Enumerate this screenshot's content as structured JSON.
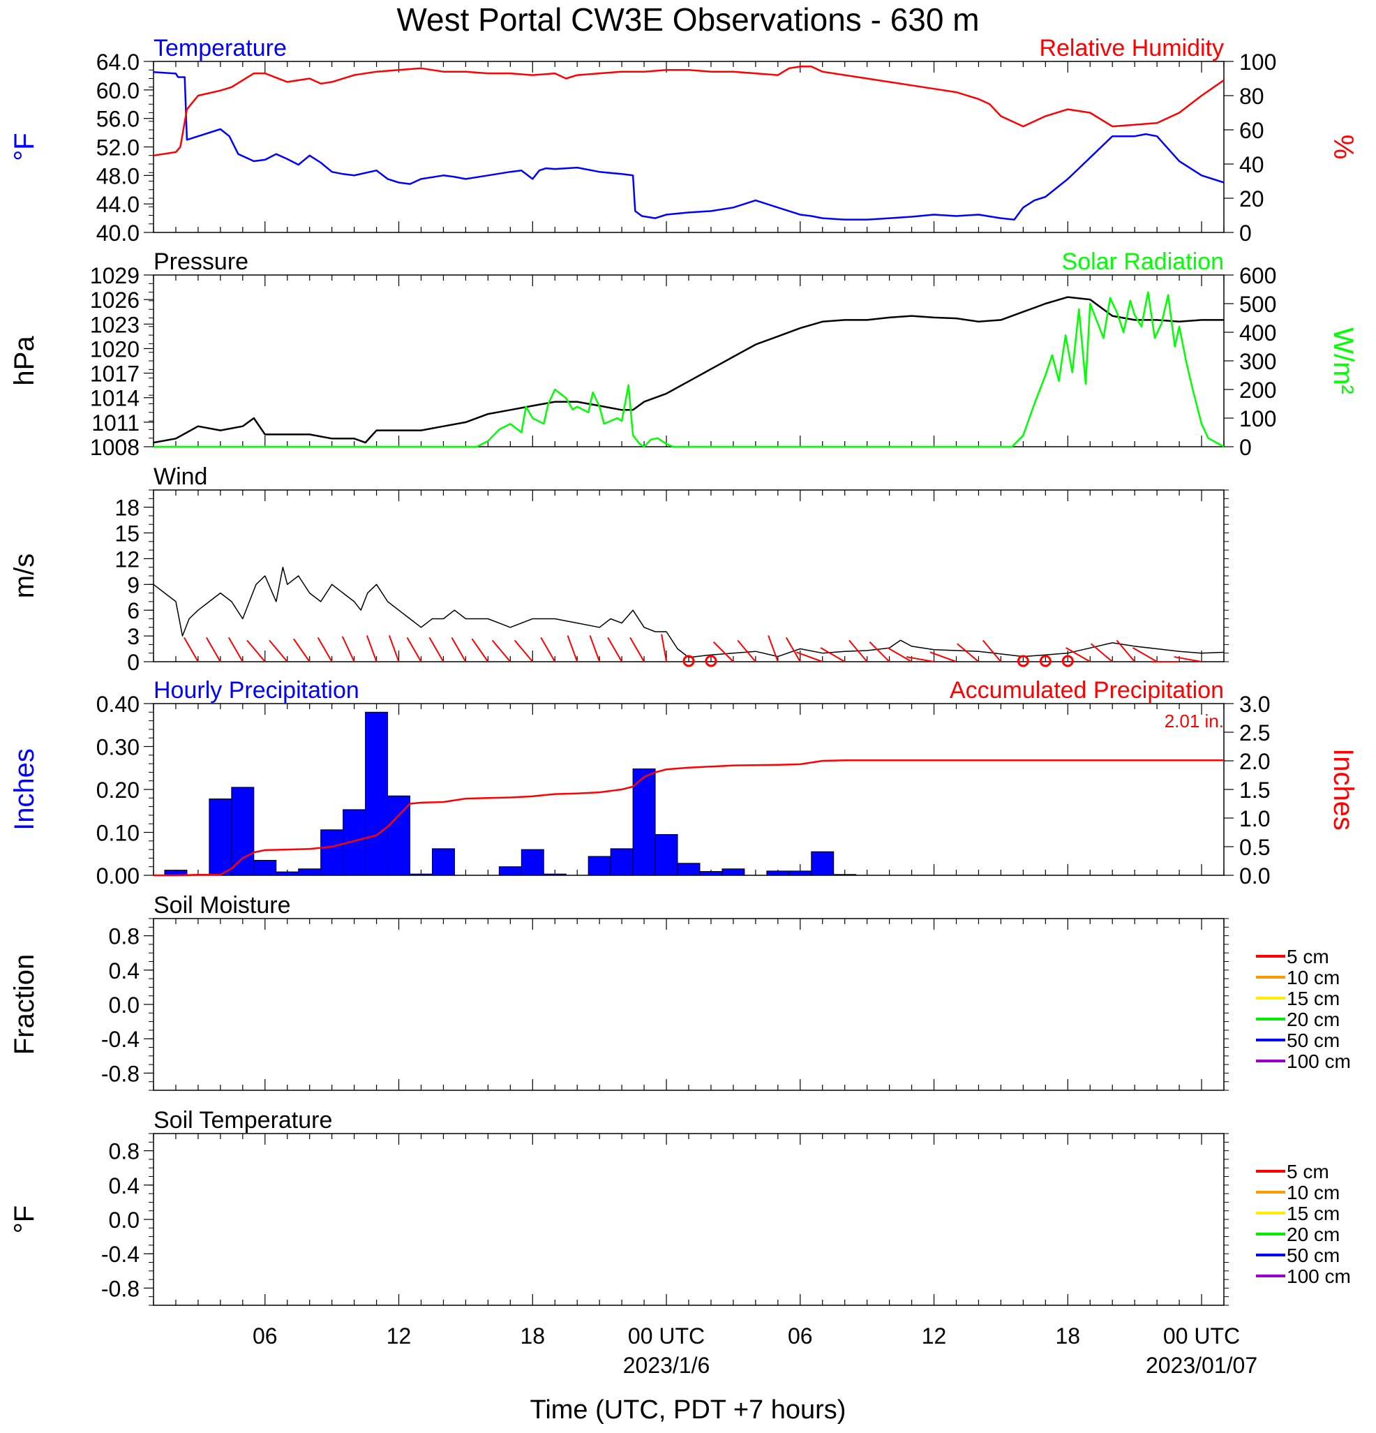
{
  "title": "West Portal CW3E Observations - 630 m",
  "colors": {
    "temperature": "#0000ff",
    "humidity": "#ff0000",
    "pressure": "#000000",
    "solar": "#00ff00",
    "wind": "#000000",
    "barbs": "#ff0000",
    "precip_bars": "#0000ff",
    "precip_accum": "#ff0000"
  },
  "xaxis": {
    "start_hours": 0,
    "end_hours": 48,
    "tick_hours": [
      5,
      11,
      17,
      23,
      29,
      35,
      41,
      47
    ],
    "tick_labels": [
      "06",
      "12",
      "18",
      "00 UTC",
      "06",
      "12",
      "18",
      "00 UTC"
    ],
    "date_labels": [
      {
        "hour": 23,
        "text": "2023/1/6"
      },
      {
        "hour": 47,
        "text": "2023/01/07"
      }
    ],
    "title": "Time (UTC, PDT +7 hours)"
  },
  "chart_data": [
    {
      "type": "line",
      "id": "temp_rh",
      "left_title": "Temperature",
      "right_title": "Relative Humidity",
      "ylabel_left": "°F",
      "ylabel_right": "%",
      "ylim_left": [
        40,
        64
      ],
      "ylim_right": [
        0,
        100
      ],
      "yticks_left": [
        "40.0",
        "44.0",
        "48.0",
        "52.0",
        "56.0",
        "60.0",
        "64.0"
      ],
      "yticks_right": [
        "0",
        "20",
        "40",
        "60",
        "80",
        "100"
      ],
      "series": [
        {
          "name": "Temperature",
          "axis": "left",
          "x": [
            0,
            1.0,
            1.1,
            1.4,
            1.5,
            2,
            3,
            3.4,
            3.8,
            4.5,
            5,
            5.5,
            6,
            6.5,
            7,
            7.5,
            8,
            8.5,
            9,
            10,
            10.5,
            11,
            11.5,
            12,
            13,
            13.5,
            14,
            15,
            16,
            16.5,
            17,
            17.3,
            17.6,
            18,
            19,
            20,
            21,
            21.5,
            21.6,
            21.9,
            22.5,
            23,
            24,
            25,
            26,
            27,
            28,
            29,
            29.5,
            30,
            31,
            32,
            33,
            34,
            35,
            36,
            37,
            38,
            38.6,
            39,
            39.5,
            40,
            41,
            41.5,
            42,
            43,
            44,
            44.5,
            45,
            46,
            47,
            48
          ],
          "values": [
            62.5,
            62.3,
            61.8,
            61.8,
            53.0,
            53.5,
            54.5,
            53.5,
            51.0,
            50.0,
            50.2,
            51.0,
            50.3,
            49.5,
            50.8,
            49.8,
            48.5,
            48.2,
            48.0,
            48.7,
            47.5,
            47.0,
            46.8,
            47.5,
            48.0,
            47.8,
            47.5,
            48.0,
            48.5,
            48.7,
            47.5,
            48.7,
            49.0,
            48.9,
            49.1,
            48.5,
            48.2,
            48.0,
            43.0,
            42.3,
            42.0,
            42.5,
            42.8,
            43.0,
            43.5,
            44.5,
            43.5,
            42.5,
            42.3,
            42.0,
            41.8,
            41.8,
            42.0,
            42.2,
            42.5,
            42.3,
            42.5,
            42.0,
            41.8,
            43.5,
            44.5,
            45.0,
            47.5,
            49.0,
            50.5,
            53.5,
            53.5,
            53.8,
            53.5,
            50.0,
            48.0,
            47.0
          ]
        },
        {
          "name": "Relative Humidity",
          "axis": "right",
          "x": [
            0,
            1,
            1.2,
            1.5,
            2,
            3,
            3.5,
            4.5,
            5,
            6,
            7,
            7.5,
            8,
            9,
            10,
            11,
            12,
            13,
            14,
            15,
            16,
            17,
            18,
            18.5,
            19,
            20,
            21,
            22,
            23,
            24,
            25,
            26,
            27,
            28,
            28.5,
            29,
            29.5,
            30,
            31,
            32,
            33,
            34,
            35,
            36,
            37,
            37.5,
            38,
            39,
            40,
            41,
            42,
            43,
            44,
            45,
            46,
            47,
            48
          ],
          "values": [
            45,
            47,
            50,
            72,
            80,
            83,
            85,
            93,
            93,
            88,
            90,
            87,
            88,
            92,
            94,
            95,
            96,
            94,
            94,
            93,
            93,
            92,
            93,
            90,
            92,
            93,
            94,
            94,
            95,
            95,
            94,
            94,
            93,
            92,
            96,
            97,
            97,
            94,
            92,
            90,
            88,
            86,
            84,
            82,
            78,
            75,
            68,
            62,
            68,
            72,
            70,
            62,
            63,
            64,
            70,
            80,
            89
          ]
        }
      ]
    },
    {
      "type": "line",
      "id": "pressure_solar",
      "left_title": "Pressure",
      "right_title": "Solar Radiation",
      "ylabel_left": "hPa",
      "ylabel_right": "W/m²",
      "ylim_left": [
        1008,
        1029
      ],
      "ylim_right": [
        0,
        600
      ],
      "yticks_left": [
        "1008",
        "1011",
        "1014",
        "1017",
        "1020",
        "1023",
        "1026",
        "1029"
      ],
      "yticks_right": [
        "0",
        "100",
        "200",
        "300",
        "400",
        "500",
        "600"
      ],
      "series": [
        {
          "name": "Pressure",
          "axis": "left",
          "x": [
            0,
            1,
            2,
            3,
            4,
            4.5,
            5,
            6,
            7,
            8,
            9,
            9.5,
            10,
            11,
            12,
            13,
            14,
            15,
            16,
            17,
            18,
            19,
            20,
            21,
            21.5,
            22,
            23,
            24,
            25,
            26,
            27,
            28,
            29,
            30,
            31,
            32,
            33,
            34,
            35,
            36,
            37,
            38,
            38.5,
            39,
            39.5,
            40,
            41,
            42,
            43,
            44,
            45,
            46,
            47,
            48
          ],
          "values": [
            1008.5,
            1009,
            1010.5,
            1010,
            1010.5,
            1011.5,
            1009.5,
            1009.5,
            1009.5,
            1009,
            1009,
            1008.5,
            1010,
            1010,
            1010,
            1010.5,
            1011,
            1012,
            1012.5,
            1013,
            1013.5,
            1013.5,
            1013,
            1012.5,
            1012.5,
            1013.5,
            1014.5,
            1016,
            1017.5,
            1019,
            1020.5,
            1021.5,
            1022.5,
            1023.3,
            1023.5,
            1023.5,
            1023.8,
            1024,
            1023.8,
            1023.7,
            1023.3,
            1023.5,
            1024,
            1024.5,
            1025,
            1025.5,
            1026.3,
            1026,
            1024,
            1023.5,
            1023.5,
            1023.3,
            1023.5,
            1023.5
          ]
        },
        {
          "name": "Solar Radiation",
          "axis": "right",
          "x": [
            0,
            14.5,
            15,
            15.5,
            16,
            16.5,
            16.7,
            17,
            17.5,
            17.7,
            18,
            18.5,
            18.8,
            19,
            19.5,
            19.7,
            20,
            20.2,
            20.5,
            20.8,
            21,
            21.3,
            21.5,
            21.8,
            22,
            22.3,
            22.6,
            23,
            23.3,
            24,
            38.5,
            39,
            39.5,
            40,
            40.3,
            40.6,
            40.9,
            41.2,
            41.5,
            41.8,
            42,
            42.3,
            42.6,
            42.9,
            43.2,
            43.5,
            43.8,
            44,
            44.3,
            44.6,
            44.9,
            45.2,
            45.5,
            45.8,
            46,
            46.3,
            46.6,
            47,
            47.3,
            48
          ],
          "values": [
            0,
            0,
            20,
            60,
            80,
            50,
            140,
            100,
            80,
            150,
            200,
            170,
            130,
            140,
            120,
            190,
            140,
            80,
            90,
            100,
            90,
            215,
            40,
            10,
            0,
            25,
            30,
            10,
            0,
            0,
            0,
            40,
            150,
            250,
            320,
            230,
            390,
            260,
            480,
            220,
            500,
            440,
            380,
            520,
            470,
            400,
            510,
            460,
            420,
            540,
            380,
            430,
            530,
            350,
            420,
            300,
            200,
            80,
            30,
            0
          ]
        }
      ]
    },
    {
      "type": "line",
      "id": "wind",
      "left_title": "Wind",
      "ylabel_left": "m/s",
      "ylim_left": [
        0,
        20
      ],
      "yticks_left": [
        "0",
        "3",
        "6",
        "9",
        "12",
        "15",
        "18"
      ],
      "series": [
        {
          "name": "Wind Speed",
          "axis": "left",
          "x": [
            0,
            0.5,
            1,
            1.3,
            1.6,
            2,
            2.5,
            3,
            3.5,
            4,
            4.3,
            4.6,
            5,
            5.5,
            5.8,
            6,
            6.5,
            7,
            7.5,
            8,
            8.5,
            9,
            9.3,
            9.6,
            10,
            10.5,
            11,
            11.5,
            12,
            12.5,
            13,
            13.5,
            14,
            15,
            16,
            17,
            18,
            19,
            20,
            20.5,
            21,
            21.5,
            22,
            22.5,
            23,
            23.5,
            24,
            25,
            26,
            27,
            28,
            29,
            30,
            31,
            32,
            33,
            33.5,
            34,
            35,
            36,
            37,
            38,
            39,
            40,
            41,
            42,
            43,
            44,
            45,
            46,
            47,
            48
          ],
          "values": [
            9,
            8,
            7,
            3,
            5,
            6,
            7,
            8,
            7,
            5,
            7,
            9,
            10,
            7,
            11,
            9,
            10,
            8,
            7,
            9,
            8,
            7,
            6,
            8,
            9,
            7,
            6,
            5,
            4,
            5,
            5,
            6,
            5,
            5,
            4,
            5,
            5,
            4.5,
            4,
            5,
            4.5,
            6,
            4,
            3.5,
            3.5,
            1.5,
            0.5,
            0.8,
            1,
            1.2,
            0.6,
            1.5,
            1,
            1.2,
            1.3,
            1.6,
            2.5,
            1.8,
            1.4,
            1.3,
            1.2,
            0.9,
            0.6,
            0.8,
            1,
            1.6,
            2.2,
            1.8,
            1.5,
            1.2,
            1,
            1.1
          ]
        }
      ],
      "barbs": {
        "x": [
          2,
          3,
          4,
          5,
          6,
          7,
          8,
          9,
          10,
          11,
          12,
          13,
          14,
          15,
          16,
          17,
          18,
          19,
          20,
          21,
          22,
          23,
          26,
          27,
          28,
          29,
          30,
          31,
          32,
          33,
          34,
          35,
          36,
          37,
          38,
          41,
          42,
          43,
          44,
          45,
          46,
          47
        ],
        "dir": [
          330,
          330,
          330,
          320,
          320,
          325,
          330,
          335,
          340,
          340,
          330,
          330,
          330,
          325,
          320,
          320,
          330,
          340,
          340,
          330,
          330,
          350,
          315,
          320,
          340,
          330,
          290,
          300,
          320,
          315,
          300,
          280,
          290,
          310,
          320,
          290,
          300,
          310,
          320,
          300,
          270,
          280
        ],
        "speed": [
          7,
          7,
          7,
          8,
          10,
          9,
          8,
          8,
          8,
          6,
          5,
          6,
          5,
          5,
          5,
          5,
          5,
          5,
          5,
          5,
          4,
          3,
          2,
          2,
          2,
          3,
          2,
          2,
          2,
          3,
          2,
          2,
          2,
          2,
          2,
          2,
          2,
          3,
          2,
          2,
          2,
          2
        ],
        "calm": [
          24,
          25,
          39,
          40,
          41
        ]
      }
    },
    {
      "type": "bar",
      "id": "precip",
      "left_title": "Hourly Precipitation",
      "right_title": "Accumulated Precipitation",
      "right_note": "2.01 in.",
      "ylabel_left": "Inches",
      "ylabel_right": "Inches",
      "ylim_left": [
        0,
        0.4
      ],
      "ylim_right": [
        0,
        3.0
      ],
      "yticks_left": [
        "0.00",
        "0.10",
        "0.20",
        "0.30",
        "0.40"
      ],
      "yticks_right": [
        "0.0",
        "0.5",
        "1.0",
        "1.5",
        "2.0",
        "2.5",
        "3.0"
      ],
      "bars": {
        "x": [
          1,
          3,
          4,
          5,
          6,
          7,
          8,
          9,
          10,
          11,
          12,
          13,
          14,
          16,
          17,
          18,
          19,
          20,
          21,
          22,
          23,
          24,
          25,
          26,
          27,
          28,
          29,
          30,
          31
        ],
        "values": [
          0.012,
          0.178,
          0.205,
          0.035,
          0.008,
          0.015,
          0.106,
          0.153,
          0.38,
          0.185,
          0.003,
          0.062,
          0,
          0.02,
          0.06,
          0.003,
          0,
          0.044,
          0.062,
          0.248,
          0.095,
          0.028,
          0.009,
          0.015,
          0,
          0.01,
          0.01,
          0.055,
          0.002
        ]
      },
      "accumulated": {
        "x": [
          0,
          1,
          2,
          3,
          3.5,
          4,
          4.5,
          5,
          6,
          7,
          8,
          8.5,
          9,
          10,
          10.5,
          11,
          11.5,
          12,
          13,
          14,
          15,
          16,
          17,
          18,
          19,
          20,
          21,
          21.5,
          22,
          22.5,
          23,
          24,
          25,
          26,
          28,
          29,
          30,
          31,
          32,
          48
        ],
        "values": [
          0,
          0,
          0.01,
          0.01,
          0.12,
          0.3,
          0.4,
          0.44,
          0.45,
          0.46,
          0.5,
          0.55,
          0.6,
          0.7,
          0.85,
          1.05,
          1.25,
          1.27,
          1.28,
          1.34,
          1.35,
          1.36,
          1.38,
          1.42,
          1.43,
          1.45,
          1.5,
          1.55,
          1.72,
          1.8,
          1.85,
          1.88,
          1.9,
          1.92,
          1.93,
          1.94,
          2.0,
          2.01,
          2.01,
          2.01
        ]
      }
    },
    {
      "type": "line",
      "id": "soil_moisture",
      "left_title": "Soil Moisture",
      "ylabel_left": "Fraction",
      "ylim_left": [
        -1,
        1
      ],
      "yticks_left": [
        "-0.8",
        "-0.4",
        "0.0",
        "0.4",
        "0.8"
      ],
      "legend": [
        "5 cm",
        "10 cm",
        "15 cm",
        "20 cm",
        "50 cm",
        "100 cm"
      ],
      "legend_colors": [
        "#ff0000",
        "#ff9900",
        "#ffee00",
        "#00ee00",
        "#0000ff",
        "#9900cc"
      ],
      "series": []
    },
    {
      "type": "line",
      "id": "soil_temp",
      "left_title": "Soil Temperature",
      "ylabel_left": "°F",
      "ylim_left": [
        -1,
        1
      ],
      "yticks_left": [
        "-0.8",
        "-0.4",
        "0.0",
        "0.4",
        "0.8"
      ],
      "legend": [
        "5 cm",
        "10 cm",
        "15 cm",
        "20 cm",
        "50 cm",
        "100 cm"
      ],
      "legend_colors": [
        "#ff0000",
        "#ff9900",
        "#ffee00",
        "#00ee00",
        "#0000ff",
        "#9900cc"
      ],
      "series": []
    }
  ]
}
